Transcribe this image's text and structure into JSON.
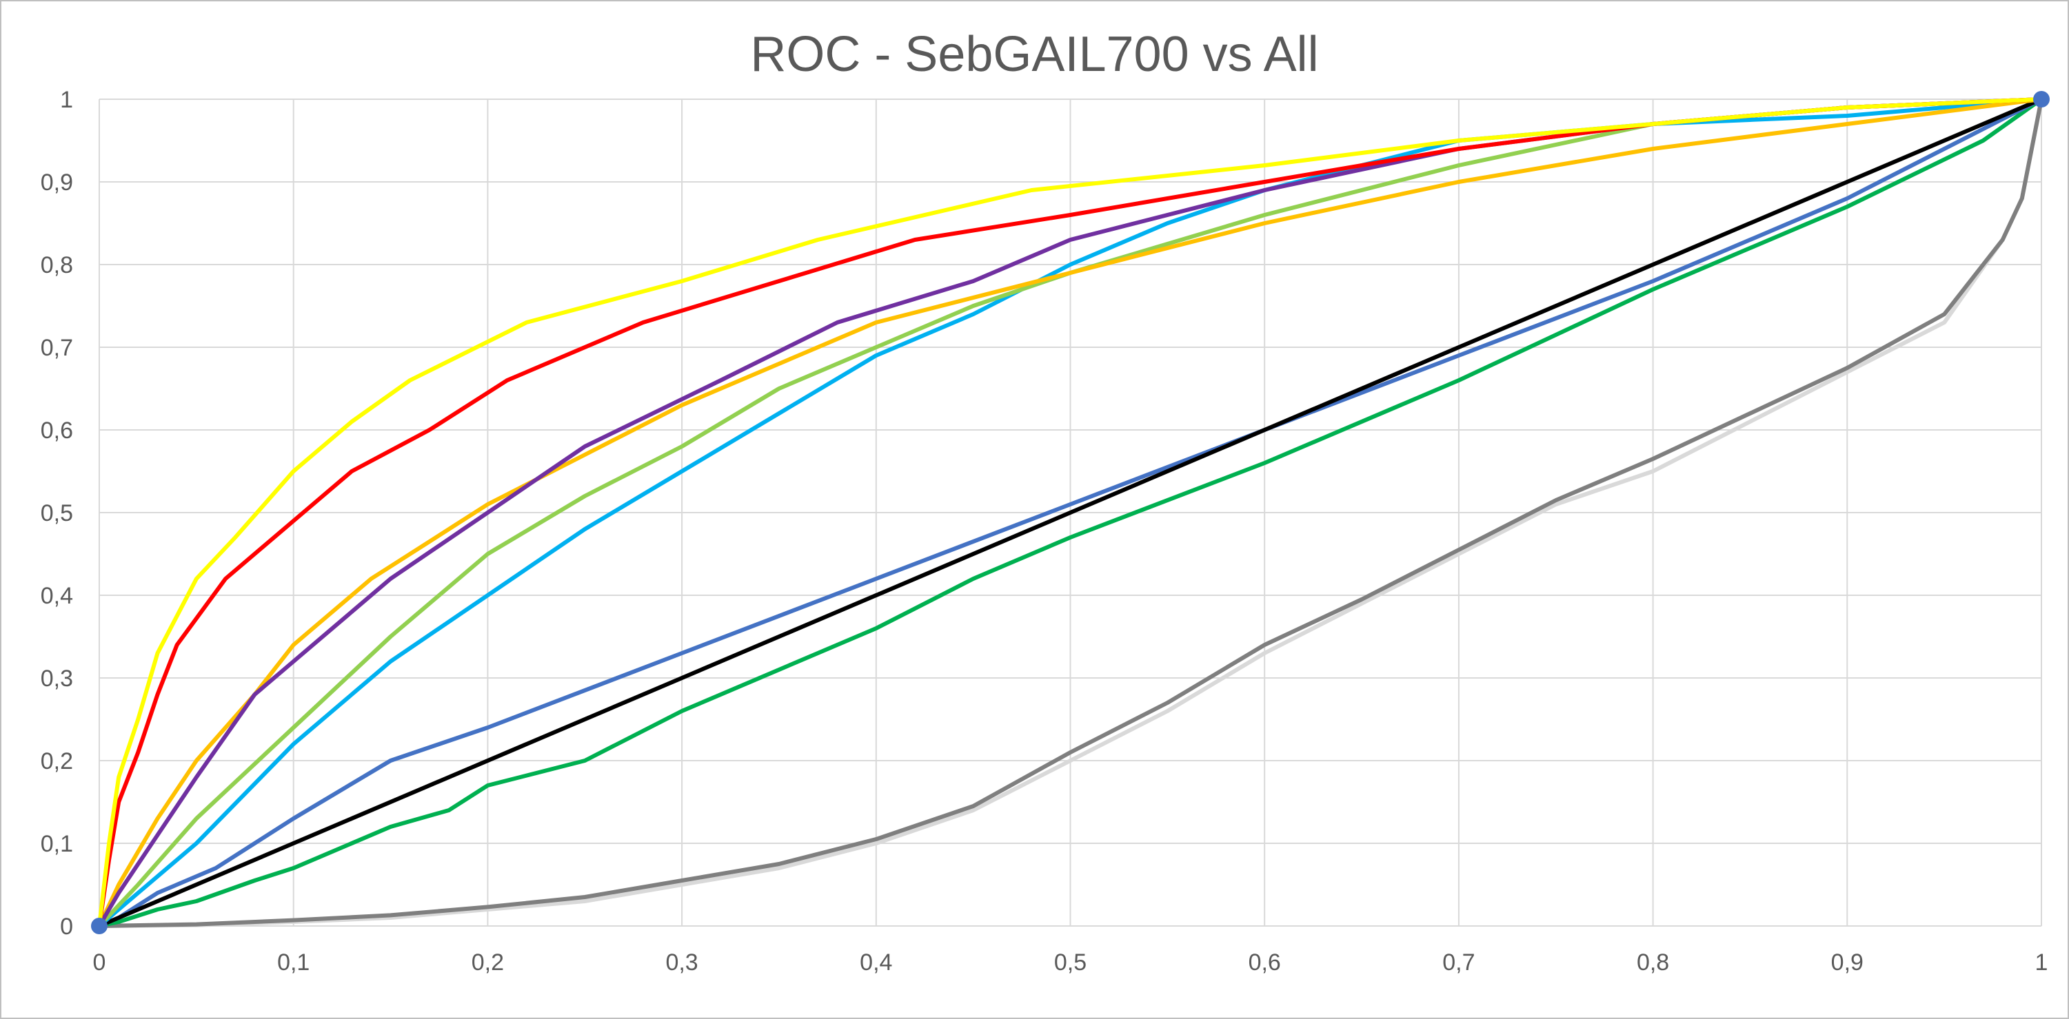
{
  "chart_data": {
    "type": "line",
    "title": "ROC - SebGAIL700 vs All",
    "xlabel": "",
    "ylabel": "",
    "xlim": [
      0,
      1
    ],
    "ylim": [
      0,
      1
    ],
    "grid": true,
    "legend": "none",
    "x_ticks": [
      "0",
      "0,1",
      "0,2",
      "0,3",
      "0,4",
      "0,5",
      "0,6",
      "0,7",
      "0,8",
      "0,9",
      "1"
    ],
    "y_ticks": [
      "0",
      "0,1",
      "0,2",
      "0,3",
      "0,4",
      "0,5",
      "0,6",
      "0,7",
      "0,8",
      "0,9",
      "1"
    ],
    "endpoint_markers": [
      [
        0,
        0
      ],
      [
        1,
        1
      ]
    ],
    "marker_color": "#4472c4",
    "series": [
      {
        "color": "#d9d9d9",
        "points": [
          [
            0,
            0
          ],
          [
            0.05,
            0.001
          ],
          [
            0.1,
            0.005
          ],
          [
            0.15,
            0.01
          ],
          [
            0.2,
            0.02
          ],
          [
            0.25,
            0.03
          ],
          [
            0.3,
            0.05
          ],
          [
            0.35,
            0.07
          ],
          [
            0.4,
            0.1
          ],
          [
            0.45,
            0.14
          ],
          [
            0.5,
            0.2
          ],
          [
            0.55,
            0.26
          ],
          [
            0.6,
            0.33
          ],
          [
            0.65,
            0.39
          ],
          [
            0.7,
            0.45
          ],
          [
            0.75,
            0.51
          ],
          [
            0.8,
            0.55
          ],
          [
            0.85,
            0.61
          ],
          [
            0.9,
            0.67
          ],
          [
            0.95,
            0.73
          ],
          [
            0.98,
            0.83
          ],
          [
            0.99,
            0.88
          ],
          [
            1,
            1
          ]
        ]
      },
      {
        "color": "#7f7f7f",
        "points": [
          [
            0,
            0
          ],
          [
            0.05,
            0.002
          ],
          [
            0.1,
            0.007
          ],
          [
            0.15,
            0.013
          ],
          [
            0.2,
            0.023
          ],
          [
            0.25,
            0.035
          ],
          [
            0.3,
            0.055
          ],
          [
            0.35,
            0.075
          ],
          [
            0.4,
            0.105
          ],
          [
            0.45,
            0.145
          ],
          [
            0.5,
            0.21
          ],
          [
            0.55,
            0.27
          ],
          [
            0.6,
            0.34
          ],
          [
            0.65,
            0.395
          ],
          [
            0.7,
            0.455
          ],
          [
            0.75,
            0.515
          ],
          [
            0.8,
            0.565
          ],
          [
            0.85,
            0.62
          ],
          [
            0.9,
            0.675
          ],
          [
            0.95,
            0.74
          ],
          [
            0.98,
            0.83
          ],
          [
            0.99,
            0.88
          ],
          [
            1,
            1
          ]
        ]
      },
      {
        "color": "#00b050",
        "points": [
          [
            0,
            0
          ],
          [
            0.01,
            0.005
          ],
          [
            0.03,
            0.02
          ],
          [
            0.05,
            0.03
          ],
          [
            0.08,
            0.055
          ],
          [
            0.1,
            0.07
          ],
          [
            0.15,
            0.12
          ],
          [
            0.18,
            0.14
          ],
          [
            0.2,
            0.17
          ],
          [
            0.25,
            0.2
          ],
          [
            0.3,
            0.26
          ],
          [
            0.35,
            0.31
          ],
          [
            0.4,
            0.36
          ],
          [
            0.45,
            0.42
          ],
          [
            0.5,
            0.47
          ],
          [
            0.6,
            0.56
          ],
          [
            0.7,
            0.66
          ],
          [
            0.8,
            0.77
          ],
          [
            0.9,
            0.87
          ],
          [
            0.97,
            0.95
          ],
          [
            1,
            1
          ]
        ]
      },
      {
        "color": "#4472c4",
        "points": [
          [
            0,
            0
          ],
          [
            0.01,
            0.01
          ],
          [
            0.03,
            0.04
          ],
          [
            0.06,
            0.07
          ],
          [
            0.1,
            0.13
          ],
          [
            0.15,
            0.2
          ],
          [
            0.2,
            0.24
          ],
          [
            0.3,
            0.33
          ],
          [
            0.4,
            0.42
          ],
          [
            0.5,
            0.51
          ],
          [
            0.6,
            0.6
          ],
          [
            0.7,
            0.69
          ],
          [
            0.8,
            0.78
          ],
          [
            0.9,
            0.88
          ],
          [
            1,
            1
          ]
        ]
      },
      {
        "color": "#000000",
        "points": [
          [
            0,
            0
          ],
          [
            1,
            1
          ]
        ]
      },
      {
        "color": "#00b0f0",
        "points": [
          [
            0,
            0
          ],
          [
            0.02,
            0.04
          ],
          [
            0.05,
            0.1
          ],
          [
            0.1,
            0.22
          ],
          [
            0.15,
            0.32
          ],
          [
            0.2,
            0.4
          ],
          [
            0.25,
            0.48
          ],
          [
            0.3,
            0.55
          ],
          [
            0.35,
            0.62
          ],
          [
            0.4,
            0.69
          ],
          [
            0.45,
            0.74
          ],
          [
            0.5,
            0.8
          ],
          [
            0.55,
            0.85
          ],
          [
            0.6,
            0.89
          ],
          [
            0.7,
            0.95
          ],
          [
            0.8,
            0.97
          ],
          [
            0.9,
            0.98
          ],
          [
            1,
            1
          ]
        ]
      },
      {
        "color": "#92d050",
        "points": [
          [
            0,
            0
          ],
          [
            0.02,
            0.05
          ],
          [
            0.05,
            0.13
          ],
          [
            0.1,
            0.24
          ],
          [
            0.15,
            0.35
          ],
          [
            0.2,
            0.45
          ],
          [
            0.25,
            0.52
          ],
          [
            0.3,
            0.58
          ],
          [
            0.35,
            0.65
          ],
          [
            0.4,
            0.7
          ],
          [
            0.45,
            0.75
          ],
          [
            0.5,
            0.79
          ],
          [
            0.6,
            0.86
          ],
          [
            0.7,
            0.92
          ],
          [
            0.8,
            0.97
          ],
          [
            0.9,
            0.99
          ],
          [
            1,
            1
          ]
        ]
      },
      {
        "color": "#ffc000",
        "points": [
          [
            0,
            0
          ],
          [
            0.01,
            0.05
          ],
          [
            0.03,
            0.13
          ],
          [
            0.05,
            0.2
          ],
          [
            0.08,
            0.28
          ],
          [
            0.1,
            0.34
          ],
          [
            0.14,
            0.42
          ],
          [
            0.2,
            0.51
          ],
          [
            0.25,
            0.57
          ],
          [
            0.3,
            0.63
          ],
          [
            0.35,
            0.68
          ],
          [
            0.4,
            0.73
          ],
          [
            0.5,
            0.79
          ],
          [
            0.6,
            0.85
          ],
          [
            0.7,
            0.9
          ],
          [
            0.8,
            0.94
          ],
          [
            0.9,
            0.97
          ],
          [
            1,
            1
          ]
        ]
      },
      {
        "color": "#7030a0",
        "points": [
          [
            0,
            0
          ],
          [
            0.01,
            0.04
          ],
          [
            0.03,
            0.11
          ],
          [
            0.05,
            0.18
          ],
          [
            0.08,
            0.28
          ],
          [
            0.1,
            0.32
          ],
          [
            0.15,
            0.42
          ],
          [
            0.2,
            0.5
          ],
          [
            0.25,
            0.58
          ],
          [
            0.32,
            0.66
          ],
          [
            0.38,
            0.73
          ],
          [
            0.45,
            0.78
          ],
          [
            0.5,
            0.83
          ],
          [
            0.6,
            0.89
          ],
          [
            0.7,
            0.94
          ],
          [
            0.8,
            0.97
          ],
          [
            0.9,
            0.99
          ],
          [
            1,
            1
          ]
        ]
      },
      {
        "color": "#ff0000",
        "points": [
          [
            0,
            0
          ],
          [
            0.005,
            0.08
          ],
          [
            0.01,
            0.15
          ],
          [
            0.02,
            0.21
          ],
          [
            0.03,
            0.28
          ],
          [
            0.04,
            0.34
          ],
          [
            0.065,
            0.42
          ],
          [
            0.1,
            0.49
          ],
          [
            0.13,
            0.55
          ],
          [
            0.17,
            0.6
          ],
          [
            0.21,
            0.66
          ],
          [
            0.28,
            0.73
          ],
          [
            0.35,
            0.78
          ],
          [
            0.42,
            0.83
          ],
          [
            0.5,
            0.86
          ],
          [
            0.6,
            0.9
          ],
          [
            0.7,
            0.94
          ],
          [
            0.8,
            0.97
          ],
          [
            0.9,
            0.99
          ],
          [
            1,
            1
          ]
        ]
      },
      {
        "color": "#ffff00",
        "points": [
          [
            0,
            0
          ],
          [
            0.005,
            0.1
          ],
          [
            0.01,
            0.18
          ],
          [
            0.02,
            0.25
          ],
          [
            0.03,
            0.33
          ],
          [
            0.05,
            0.42
          ],
          [
            0.07,
            0.47
          ],
          [
            0.1,
            0.55
          ],
          [
            0.13,
            0.61
          ],
          [
            0.16,
            0.66
          ],
          [
            0.22,
            0.73
          ],
          [
            0.3,
            0.78
          ],
          [
            0.37,
            0.83
          ],
          [
            0.48,
            0.89
          ],
          [
            0.6,
            0.92
          ],
          [
            0.7,
            0.95
          ],
          [
            0.8,
            0.97
          ],
          [
            0.9,
            0.99
          ],
          [
            1,
            1
          ]
        ]
      }
    ]
  }
}
